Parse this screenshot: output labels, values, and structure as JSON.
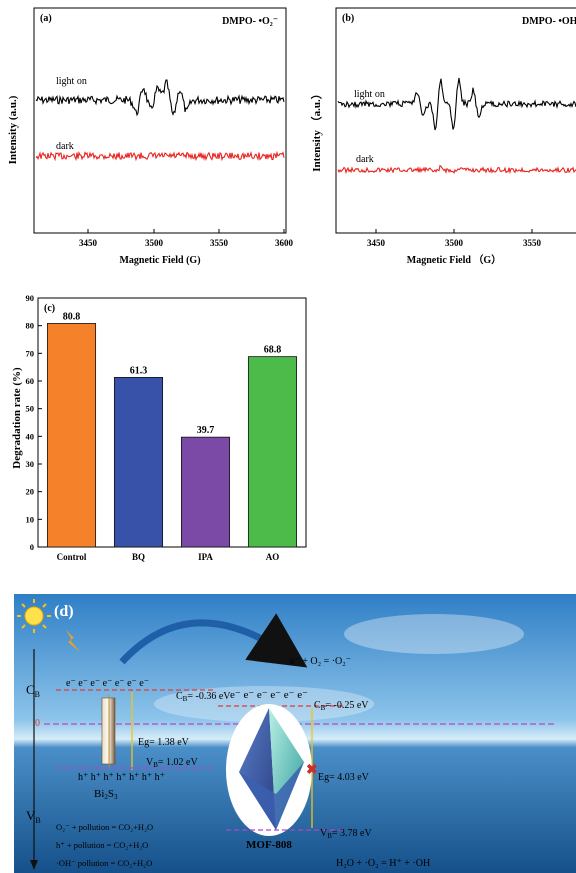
{
  "panel_a": {
    "tag": "(a)",
    "species": "DMPO- •O₂⁻",
    "ylabel": "Intensity (a.u.)",
    "xlabel": "Magnetic Field (G)",
    "trace_light": "light on",
    "trace_dark": "dark",
    "xticks": [
      "3450",
      "3500",
      "3550",
      "3600"
    ]
  },
  "panel_b": {
    "tag": "(b)",
    "species": "DMPO- •OH",
    "ylabel": "Intensity （a.u.）",
    "xlabel": "Magnetic Field （G）",
    "trace_light": "light on",
    "trace_dark": "dark",
    "xticks": [
      "3450",
      "3500",
      "3550"
    ]
  },
  "chart_data": [
    {
      "type": "line",
      "panel": "(a)",
      "xlabel": "Magnetic Field (G)",
      "ylabel": "Intensity (a.u.)",
      "xlim": [
        3415,
        3600
      ],
      "series": [
        {
          "name": "light on",
          "color": "#000000"
        },
        {
          "name": "dark",
          "color": "#e8231f"
        }
      ],
      "annotation": "DMPO- •O₂⁻"
    },
    {
      "type": "line",
      "panel": "(b)",
      "xlabel": "Magnetic Field （G）",
      "ylabel": "Intensity （a.u.）",
      "xlim": [
        3420,
        3580
      ],
      "series": [
        {
          "name": "light on",
          "color": "#000000"
        },
        {
          "name": "dark",
          "color": "#e8231f"
        }
      ],
      "annotation": "DMPO- •OH"
    },
    {
      "type": "bar",
      "panel": "(c)",
      "categories": [
        "Control",
        "BQ",
        "IPA",
        "AO"
      ],
      "values": [
        80.8,
        61.3,
        39.7,
        68.8
      ],
      "value_labels": [
        "80.8",
        "61.3",
        "39.7",
        "68.8"
      ],
      "colors": [
        "#f5822a",
        "#3752a8",
        "#7b4aa6",
        "#4cbb4a"
      ],
      "ylabel": "Degradation rate (%)",
      "ylim": [
        0,
        90
      ],
      "yticks": [
        "0",
        "10",
        "20",
        "30",
        "40",
        "50",
        "60",
        "70",
        "80",
        "90"
      ]
    }
  ],
  "panel_c": {
    "tag": "(c)"
  },
  "panel_d": {
    "tag": "(d)",
    "cb": "C",
    "cb_sub": "B",
    "vb": "V",
    "vb_sub": "B",
    "zero": "0",
    "electrons": "e⁻ e⁻ e⁻ e⁻ e⁻ e⁻ e⁻",
    "holes": "h⁺ h⁺ h⁺ h⁺ h⁺ h⁺ h⁺",
    "bi2s3_cb": "C",
    "bi2s3_cb_sub": "B",
    "bi2s3_cb_val": "= -0.36 eV",
    "bi2s3_eg": "Eg= 1.38 eV",
    "bi2s3_vb": "V",
    "bi2s3_vb_sub": "B",
    "bi2s3_vb_val": "= 1.02 eV",
    "bi2s3_name_main": "Bi",
    "bi2s3_name_sub1": "2",
    "bi2s3_name_s": "S",
    "bi2s3_name_sub2": "3",
    "mof_electrons": "e⁻ e⁻ e⁻ e⁻ e⁻ e⁻",
    "mof_cb": "C",
    "mof_cb_sub": "B",
    "mof_cb_val": "= -0.25 eV",
    "mof_eg": "Eg= 4.03 eV",
    "mof_vb": "V",
    "mof_vb_sub": "B",
    "mof_vb_val": "= 3.78 eV",
    "mof_name": "MOF-808",
    "reaction_top": "e⁻ + O₂ = ·O₂⁻",
    "reaction_bottom": "H₂O + ·O₂ = H⁺ + ·OH",
    "legend_1": "O₂⁻ + pollution = CO₂+H₂O",
    "legend_2": "h⁺ + pollution = CO₂+H₂O",
    "legend_3": "·OH⁻ pollution = CO₂+H₂O",
    "colors": {
      "sky_top": "#2f7fc6",
      "sea": "#1b5f9e",
      "cb_line": "#e23a3a",
      "vb_line": "#b048c8",
      "arrow": "#f0c419"
    }
  }
}
